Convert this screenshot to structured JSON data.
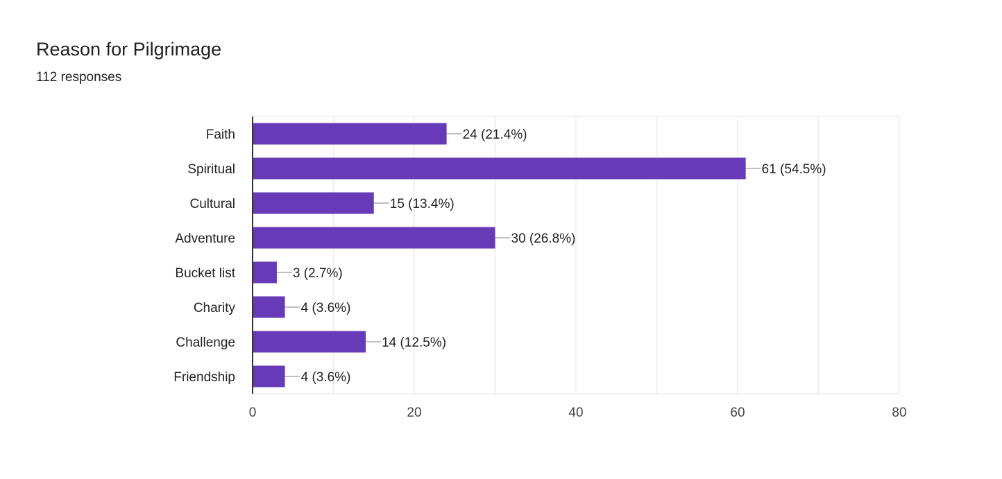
{
  "header": {
    "title": "Reason for Pilgrimage",
    "responses": "112 responses"
  },
  "colors": {
    "bar": "#673ab7",
    "grid": "#ebebeb",
    "axis": "#333333",
    "text": "#222222"
  },
  "chart_data": {
    "type": "bar",
    "orientation": "horizontal",
    "title": "Reason for Pilgrimage",
    "categories": [
      "Faith",
      "Spiritual",
      "Cultural",
      "Adventure",
      "Bucket list",
      "Charity",
      "Challenge",
      "Friendship"
    ],
    "values": [
      24,
      61,
      15,
      30,
      3,
      4,
      14,
      4
    ],
    "labels": [
      "24 (21.4%)",
      "61 (54.5%)",
      "15 (13.4%)",
      "30 (26.8%)",
      "3 (2.7%)",
      "4 (3.6%)",
      "14 (12.5%)",
      "4 (3.6%)"
    ],
    "xlim": [
      0,
      80
    ],
    "xticks": [
      0,
      20,
      40,
      60,
      80
    ],
    "grid_step": 10,
    "grid": true,
    "xlabel": "",
    "ylabel": ""
  }
}
